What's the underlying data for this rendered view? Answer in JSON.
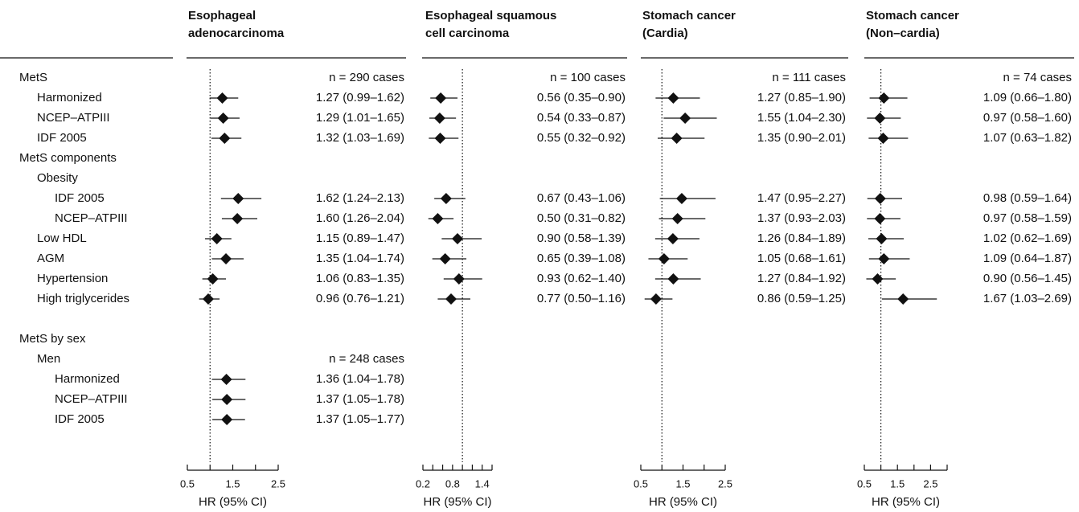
{
  "row_labels": [
    "MetS",
    "Harmonized",
    "NCEP–ATPIII",
    "IDF 2005",
    "MetS components",
    "Obesity",
    "IDF 2005",
    "NCEP–ATPIII",
    "Low HDL",
    "AGM",
    "Hypertension",
    "High triglycerides",
    null,
    "MetS by sex",
    "Men",
    "Harmonized",
    "NCEP–ATPIII",
    "IDF 2005"
  ],
  "chart_data": [
    {
      "type": "forest",
      "title": [
        "Esophageal",
        "adenocarcinoma"
      ],
      "xlabel": "HR (95% CI)",
      "xlim": [
        0.5,
        2.5
      ],
      "xticks": [
        0.5,
        1.5,
        2.5
      ],
      "minor_xticks": [
        1,
        2
      ],
      "ref_line": 1,
      "n_labels": [
        "n = 290 cases",
        null,
        null,
        null,
        null,
        null,
        null,
        null,
        null,
        null,
        null,
        null,
        null,
        null,
        "n = 248 cases",
        null,
        null,
        null
      ],
      "values": [
        null,
        1.27,
        1.29,
        1.32,
        null,
        null,
        1.62,
        1.6,
        1.15,
        1.35,
        1.06,
        0.96,
        null,
        null,
        null,
        1.36,
        1.37,
        1.37
      ],
      "lower": [
        null,
        0.99,
        1.01,
        1.03,
        null,
        null,
        1.24,
        1.26,
        0.89,
        1.04,
        0.83,
        0.76,
        null,
        null,
        null,
        1.04,
        1.05,
        1.05
      ],
      "upper": [
        null,
        1.62,
        1.65,
        1.69,
        null,
        null,
        2.13,
        2.04,
        1.47,
        1.74,
        1.35,
        1.21,
        null,
        null,
        null,
        1.78,
        1.78,
        1.77
      ],
      "value_labels": [
        null,
        "1.27 (0.99–1.62)",
        "1.29 (1.01–1.65)",
        "1.32 (1.03–1.69)",
        null,
        null,
        "1.62 (1.24–2.13)",
        "1.60 (1.26–2.04)",
        "1.15 (0.89–1.47)",
        "1.35 (1.04–1.74)",
        "1.06 (0.83–1.35)",
        "0.96 (0.76–1.21)",
        null,
        null,
        null,
        "1.36 (1.04–1.78)",
        "1.37 (1.05–1.78)",
        "1.37 (1.05–1.77)"
      ]
    },
    {
      "type": "forest",
      "title": [
        "Esophageal squamous",
        "cell carcinoma"
      ],
      "xlabel": "HR (95% CI)",
      "xlim": [
        0.2,
        1.6
      ],
      "xticks": [
        0.2,
        0.8,
        1.4
      ],
      "minor_xticks": [
        0.4,
        0.6,
        1.0,
        1.2,
        1.6
      ],
      "ref_line": 1,
      "n_labels": [
        "n = 100 cases",
        null,
        null,
        null,
        null,
        null,
        null,
        null,
        null,
        null,
        null,
        null,
        null,
        null,
        null,
        null,
        null,
        null
      ],
      "values": [
        null,
        0.56,
        0.54,
        0.55,
        null,
        null,
        0.67,
        0.5,
        0.9,
        0.65,
        0.93,
        0.77,
        null,
        null,
        null,
        null,
        null,
        null
      ],
      "lower": [
        null,
        0.35,
        0.33,
        0.32,
        null,
        null,
        0.43,
        0.31,
        0.58,
        0.39,
        0.62,
        0.5,
        null,
        null,
        null,
        null,
        null,
        null
      ],
      "upper": [
        null,
        0.9,
        0.87,
        0.92,
        null,
        null,
        1.06,
        0.82,
        1.39,
        1.08,
        1.4,
        1.16,
        null,
        null,
        null,
        null,
        null,
        null
      ],
      "value_labels": [
        null,
        "0.56 (0.35–0.90)",
        "0.54 (0.33–0.87)",
        "0.55 (0.32–0.92)",
        null,
        null,
        "0.67 (0.43–1.06)",
        "0.50 (0.31–0.82)",
        "0.90 (0.58–1.39)",
        "0.65 (0.39–1.08)",
        "0.93 (0.62–1.40)",
        "0.77 (0.50–1.16)",
        null,
        null,
        null,
        null,
        null,
        null
      ]
    },
    {
      "type": "forest",
      "title": [
        "Stomach cancer",
        "(Cardia)"
      ],
      "xlabel": "HR (95% CI)",
      "xlim": [
        0.5,
        2.5
      ],
      "xticks": [
        0.5,
        1.5,
        2.5
      ],
      "minor_xticks": [
        1,
        2
      ],
      "ref_line": 1,
      "n_labels": [
        "n = 111 cases",
        null,
        null,
        null,
        null,
        null,
        null,
        null,
        null,
        null,
        null,
        null,
        null,
        null,
        null,
        null,
        null,
        null
      ],
      "values": [
        null,
        1.27,
        1.55,
        1.35,
        null,
        null,
        1.47,
        1.37,
        1.26,
        1.05,
        1.27,
        0.86,
        null,
        null,
        null,
        null,
        null,
        null
      ],
      "lower": [
        null,
        0.85,
        1.04,
        0.9,
        null,
        null,
        0.95,
        0.93,
        0.84,
        0.68,
        0.84,
        0.59,
        null,
        null,
        null,
        null,
        null,
        null
      ],
      "upper": [
        null,
        1.9,
        2.3,
        2.01,
        null,
        null,
        2.27,
        2.03,
        1.89,
        1.61,
        1.92,
        1.25,
        null,
        null,
        null,
        null,
        null,
        null
      ],
      "value_labels": [
        null,
        "1.27 (0.85–1.90)",
        "1.55 (1.04–2.30)",
        "1.35 (0.90–2.01)",
        null,
        null,
        "1.47 (0.95–2.27)",
        "1.37 (0.93–2.03)",
        "1.26 (0.84–1.89)",
        "1.05 (0.68–1.61)",
        "1.27 (0.84–1.92)",
        "0.86 (0.59–1.25)",
        null,
        null,
        null,
        null,
        null,
        null
      ]
    },
    {
      "type": "forest",
      "title": [
        "Stomach cancer",
        "(Non–cardia)"
      ],
      "xlabel": "HR (95% CI)",
      "xlim": [
        0.5,
        3
      ],
      "xticks": [
        0.5,
        1.5,
        2.5
      ],
      "minor_xticks": [
        1,
        2,
        3
      ],
      "ref_line": 1,
      "n_labels": [
        "n = 74 cases",
        null,
        null,
        null,
        null,
        null,
        null,
        null,
        null,
        null,
        null,
        null,
        null,
        null,
        null,
        null,
        null,
        null
      ],
      "values": [
        null,
        1.09,
        0.97,
        1.07,
        null,
        null,
        0.98,
        0.97,
        1.02,
        1.09,
        0.9,
        1.67,
        null,
        null,
        null,
        null,
        null,
        null
      ],
      "lower": [
        null,
        0.66,
        0.58,
        0.63,
        null,
        null,
        0.59,
        0.58,
        0.62,
        0.64,
        0.56,
        1.03,
        null,
        null,
        null,
        null,
        null,
        null
      ],
      "upper": [
        null,
        1.8,
        1.6,
        1.82,
        null,
        null,
        1.64,
        1.59,
        1.69,
        1.87,
        1.45,
        2.69,
        null,
        null,
        null,
        null,
        null,
        null
      ],
      "value_labels": [
        null,
        "1.09 (0.66–1.80)",
        "0.97 (0.58–1.60)",
        "1.07 (0.63–1.82)",
        null,
        null,
        "0.98 (0.59–1.64)",
        "0.97 (0.58–1.59)",
        "1.02 (0.62–1.69)",
        "1.09 (0.64–1.87)",
        "0.90 (0.56–1.45)",
        "1.67 (1.03–2.69)",
        null,
        null,
        null,
        null,
        null,
        null
      ]
    }
  ]
}
